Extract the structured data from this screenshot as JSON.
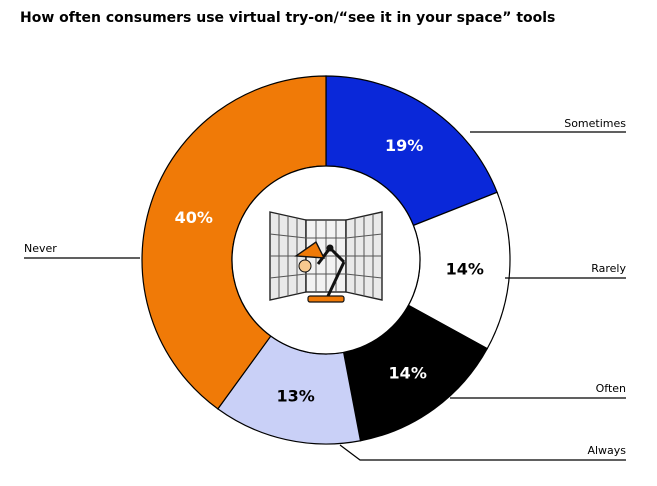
{
  "chart_data": {
    "type": "pie",
    "title": "How often consumers use virtual try-on/“see it in your space” tools",
    "categories": [
      "Sometimes",
      "Rarely",
      "Often",
      "Always",
      "Never"
    ],
    "values": [
      19,
      14,
      14,
      13,
      40
    ],
    "data_labels": [
      "19%",
      "14%",
      "14%",
      "13%",
      "40%"
    ],
    "colors": [
      "#0a28d9",
      "#ffffff",
      "#000000",
      "#c9d0f7",
      "#f07a07"
    ],
    "label_colors": [
      "#ffffff",
      "#000000",
      "#ffffff",
      "#000000",
      "#ffffff"
    ],
    "legend": "callout-lines",
    "style": "donut",
    "center_icon": "ar-room-lamp-icon"
  }
}
